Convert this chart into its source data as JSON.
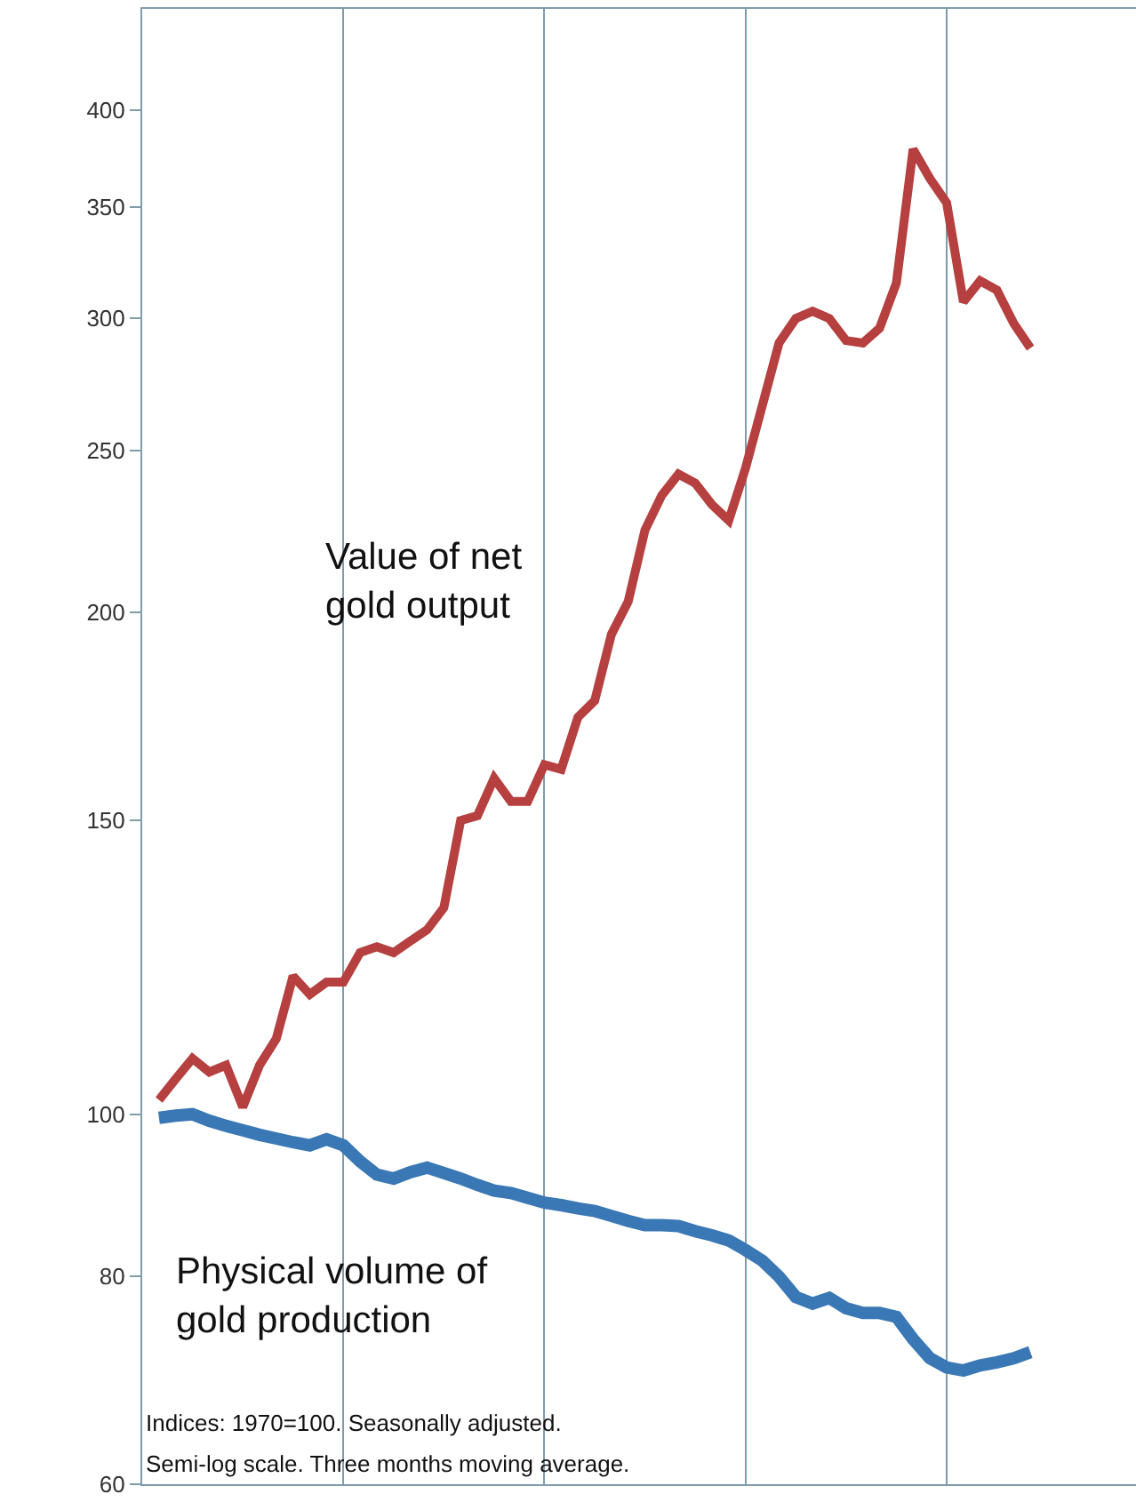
{
  "chart_data": {
    "type": "line",
    "log": true,
    "grid": "x",
    "tick_labels": "y",
    "marker": "none",
    "categories": [
      null,
      null,
      null,
      null,
      null,
      null,
      null,
      null,
      null,
      null,
      null,
      null,
      null,
      null,
      null,
      null,
      null,
      null,
      null,
      null,
      null,
      null,
      null,
      null,
      null,
      null,
      null,
      null,
      null,
      null,
      null,
      null,
      null,
      null,
      null,
      null,
      null,
      null,
      null,
      null,
      null,
      null,
      null,
      null,
      null,
      null,
      null,
      null,
      null,
      null,
      null,
      null,
      null
    ],
    "ylim": [
      60,
      460
    ],
    "yticks": [
      60,
      80,
      100,
      150,
      200,
      250,
      300,
      350,
      400
    ],
    "series": [
      {
        "name": "Value of net\ngold output",
        "color": "#b5403f",
        "values": [
          102,
          105,
          108,
          106,
          107,
          101,
          107,
          111,
          121,
          118,
          120,
          120,
          125,
          126,
          125,
          127,
          129,
          133,
          150,
          151,
          159,
          154,
          154,
          162,
          161,
          173,
          177,
          194,
          203,
          224,
          235,
          242,
          239,
          232,
          227,
          244,
          266,
          290,
          300,
          303,
          300,
          291,
          290,
          296,
          315,
          379,
          364,
          352,
          307,
          316,
          312,
          298,
          288
        ]
      },
      {
        "name": "Physical volume of\ngold production",
        "color": "#3a78b5",
        "values": [
          99.5,
          99.8,
          100,
          99.1,
          98.4,
          97.8,
          97.2,
          96.7,
          96.2,
          95.8,
          96.6,
          95.8,
          93.7,
          92.0,
          91.5,
          92.3,
          92.9,
          92.2,
          91.5,
          90.7,
          90.0,
          89.7,
          89.1,
          88.5,
          88.2,
          87.8,
          87.5,
          86.9,
          86.3,
          85.8,
          85.8,
          85.7,
          85.1,
          84.6,
          84.0,
          82.9,
          81.7,
          79.9,
          77.7,
          77.0,
          77.6,
          76.5,
          76.0,
          76.0,
          75.6,
          73.3,
          71.4,
          70.5,
          70.2,
          70.7,
          71.0,
          71.4,
          72.0
        ]
      }
    ],
    "annotations": [
      "Indices: 1970=100. Seasonally adjusted.",
      "Semi-log scale. Three months moving average."
    ]
  }
}
